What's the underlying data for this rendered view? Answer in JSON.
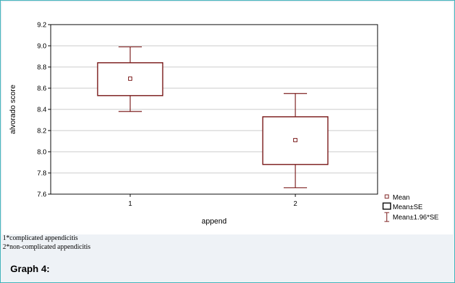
{
  "chart_data": {
    "type": "box",
    "xlabel": "append",
    "ylabel": "alvorado score",
    "categories": [
      "1",
      "2"
    ],
    "ylim": [
      7.6,
      9.2
    ],
    "yticks": [
      "9.2",
      "9.0",
      "8.8",
      "8.6",
      "8.4",
      "8.2",
      "8.0",
      "7.8",
      "7.6"
    ],
    "grid": true,
    "legend_position": "bottom-right",
    "legend": [
      "Mean",
      "Mean±SE",
      "Mean±1.96*SE"
    ],
    "groups": [
      {
        "category": "1",
        "mean": 8.69,
        "se_low": 8.53,
        "se_high": 8.84,
        "ci_low": 8.38,
        "ci_high": 8.99
      },
      {
        "category": "2",
        "mean": 8.11,
        "se_low": 7.88,
        "se_high": 8.33,
        "ci_low": 7.66,
        "ci_high": 8.55
      }
    ],
    "colors": {
      "series": "#7a1a1a",
      "grid": "#c8c8c8",
      "frame": "#39b0b8"
    }
  },
  "notes": [
    "1*complicated appendicitis",
    "2*non-complicated appendicitis"
  ],
  "graph_title": "Graph 4:"
}
